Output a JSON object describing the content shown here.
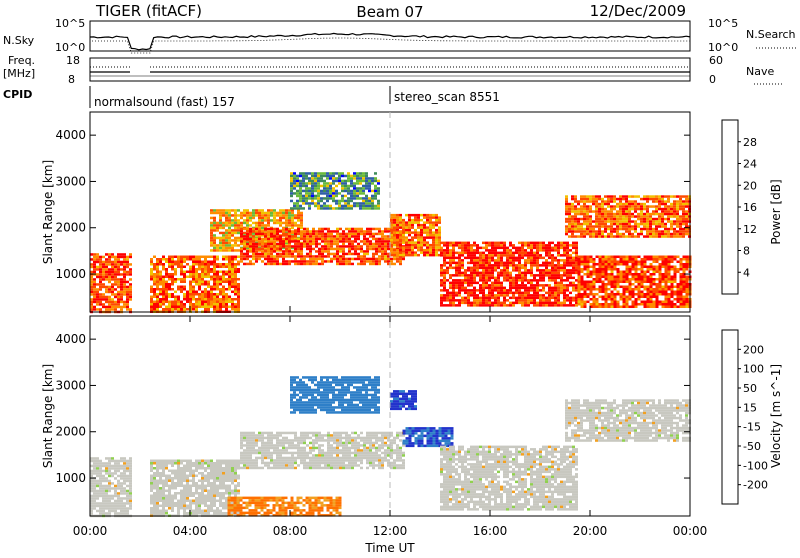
{
  "header": {
    "station": "TIGER (fitACF)",
    "beam": "Beam 07",
    "date": "12/Dec/2009"
  },
  "noise_panel": {
    "left_label": "N.Sky",
    "left_ticks": [
      "10^5",
      "10^0"
    ],
    "right_label": "N.Search",
    "right_ticks": [
      "10^5",
      "10^0"
    ]
  },
  "freq_panel": {
    "left_label_1": "Freq.",
    "left_label_2": "[MHz]",
    "left_ticks": [
      "18",
      "8"
    ],
    "right_label": "Nave",
    "right_ticks": [
      "60",
      "0"
    ]
  },
  "cpid_panel": {
    "label": "CPID",
    "mode_1": "normalsound (fast) 157",
    "mode_2": "stereo_scan 8551"
  },
  "x_axis": {
    "ticks": [
      "00:00",
      "04:00",
      "08:00",
      "12:00",
      "16:00",
      "20:00",
      "00:00"
    ],
    "label": "Time UT"
  },
  "colors": {
    "power": [
      "#0000ff",
      "#2e5ea8",
      "#3f8c5a",
      "#6bbb3a",
      "#f2c200",
      "#ff8c00",
      "#ff4a00",
      "#ff0000"
    ],
    "velocity": [
      "#2233cc",
      "#2e7fc8",
      "#2ca02c",
      "#90d050",
      "#c8c8c0",
      "#f2a020",
      "#ff7000",
      "#ff3000",
      "#ee0000"
    ],
    "ground_scatter": "#c8c8c0"
  },
  "chart_data": [
    {
      "type": "heatmap",
      "name": "Power",
      "ylabel": "Slant Range [km]",
      "yticks": [
        1000,
        2000,
        3000,
        4000
      ],
      "ylim": [
        180,
        4500
      ],
      "xlim_hours": [
        0,
        24
      ],
      "colorbar": {
        "label": "Power [dB]",
        "ticks": [
          4,
          8,
          12,
          16,
          20,
          24,
          28
        ],
        "range": [
          0,
          32
        ]
      },
      "echo_regions": [
        {
          "t0": 0.0,
          "t1": 1.6,
          "r0": 180,
          "r1": 1450,
          "level": 28
        },
        {
          "t0": 2.4,
          "t1": 6.0,
          "r0": 180,
          "r1": 1400,
          "level": 26
        },
        {
          "t0": 4.8,
          "t1": 8.5,
          "r0": 1500,
          "r1": 2400,
          "level": 22
        },
        {
          "t0": 6.0,
          "t1": 12.5,
          "r0": 1200,
          "r1": 2000,
          "level": 28
        },
        {
          "t0": 8.0,
          "t1": 11.5,
          "r0": 2400,
          "r1": 3200,
          "level": 12
        },
        {
          "t0": 12.0,
          "t1": 14.0,
          "r0": 1400,
          "r1": 2300,
          "level": 26
        },
        {
          "t0": 14.0,
          "t1": 19.5,
          "r0": 300,
          "r1": 1700,
          "level": 30
        },
        {
          "t0": 19.0,
          "t1": 24.0,
          "r0": 1800,
          "r1": 2700,
          "level": 26
        },
        {
          "t0": 19.5,
          "t1": 24.0,
          "r0": 300,
          "r1": 1400,
          "level": 28
        }
      ]
    },
    {
      "type": "heatmap",
      "name": "Velocity",
      "ylabel": "Slant Range [km]",
      "yticks": [
        1000,
        2000,
        3000,
        4000
      ],
      "ylim": [
        180,
        4500
      ],
      "xlim_hours": [
        0,
        24
      ],
      "colorbar": {
        "label": "Velocity [m s^-1]",
        "ticks": [
          200,
          100,
          50,
          15,
          -15,
          -50,
          -100,
          -200
        ]
      },
      "echo_regions": [
        {
          "t0": 0.0,
          "t1": 1.6,
          "r0": 180,
          "r1": 1450,
          "velocity": 0
        },
        {
          "t0": 2.4,
          "t1": 6.0,
          "r0": 180,
          "r1": 1400,
          "velocity": 0
        },
        {
          "t0": 6.0,
          "t1": 12.5,
          "r0": 1200,
          "r1": 2000,
          "velocity": 0
        },
        {
          "t0": 8.0,
          "t1": 11.5,
          "r0": 2400,
          "r1": 3200,
          "velocity": 150
        },
        {
          "t0": 12.0,
          "t1": 13.0,
          "r0": 2500,
          "r1": 2900,
          "velocity": 220
        },
        {
          "t0": 12.5,
          "t1": 14.5,
          "r0": 1700,
          "r1": 2100,
          "velocity": 200
        },
        {
          "t0": 14.0,
          "t1": 19.5,
          "r0": 300,
          "r1": 1700,
          "velocity": 0
        },
        {
          "t0": 19.0,
          "t1": 24.0,
          "r0": 1800,
          "r1": 2700,
          "velocity": 0
        },
        {
          "t0": 5.5,
          "t1": 10.0,
          "r0": 180,
          "r1": 600,
          "velocity": -60
        }
      ]
    }
  ]
}
